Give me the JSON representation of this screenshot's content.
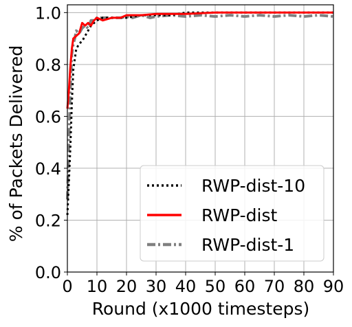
{
  "chart_data": {
    "type": "line",
    "title": "",
    "xlabel": "Round (x1000 timesteps)",
    "ylabel": "% of Packets Delivered",
    "xlim": [
      0,
      90
    ],
    "ylim": [
      0,
      1.03
    ],
    "xticks": [
      0,
      10,
      20,
      30,
      40,
      50,
      60,
      70,
      80,
      90
    ],
    "xtick_labels": [
      "0",
      "10",
      "20",
      "30",
      "40",
      "50",
      "60",
      "70",
      "80",
      "90"
    ],
    "yticks": [
      0.0,
      0.2,
      0.4,
      0.6,
      0.8,
      1.0
    ],
    "ytick_labels": [
      "0.0",
      "0.2",
      "0.4",
      "0.6",
      "0.8",
      "1.0"
    ],
    "grid": true,
    "legend_position": "lower-right",
    "series": [
      {
        "name": "RWP-dist-10",
        "color": "#000000",
        "style": "dotted",
        "points": [
          [
            0,
            0.22
          ],
          [
            0.5,
            0.35
          ],
          [
            1,
            0.48
          ],
          [
            1.5,
            0.65
          ],
          [
            2,
            0.78
          ],
          [
            3,
            0.86
          ],
          [
            4,
            0.88
          ],
          [
            5,
            0.89
          ],
          [
            6,
            0.91
          ],
          [
            7,
            0.93
          ],
          [
            8,
            0.95
          ],
          [
            10,
            0.97
          ],
          [
            12,
            0.98
          ],
          [
            15,
            0.98
          ],
          [
            20,
            0.98
          ],
          [
            25,
            0.99
          ],
          [
            30,
            0.99
          ],
          [
            35,
            0.99
          ],
          [
            40,
            1.0
          ],
          [
            50,
            1.0
          ],
          [
            60,
            1.0
          ],
          [
            70,
            1.0
          ],
          [
            80,
            1.0
          ],
          [
            90,
            1.0
          ]
        ]
      },
      {
        "name": "RWP-dist",
        "color": "#ff0000",
        "style": "solid",
        "points": [
          [
            0,
            0.63
          ],
          [
            0.5,
            0.7
          ],
          [
            1,
            0.79
          ],
          [
            1.5,
            0.86
          ],
          [
            2,
            0.9
          ],
          [
            3,
            0.91
          ],
          [
            4,
            0.92
          ],
          [
            5,
            0.96
          ],
          [
            6,
            0.95
          ],
          [
            7,
            0.96
          ],
          [
            8,
            0.95
          ],
          [
            9,
            0.97
          ],
          [
            10,
            0.98
          ],
          [
            12,
            0.97
          ],
          [
            15,
            0.98
          ],
          [
            18,
            0.98
          ],
          [
            20,
            0.99
          ],
          [
            25,
            0.99
          ],
          [
            30,
            0.995
          ],
          [
            40,
            0.995
          ],
          [
            50,
            1.0
          ],
          [
            60,
            1.0
          ],
          [
            70,
            1.0
          ],
          [
            80,
            1.0
          ],
          [
            90,
            1.0
          ]
        ]
      },
      {
        "name": "RWP-dist-1",
        "color": "#808080",
        "style": "dashdot",
        "points": [
          [
            0,
            0.28
          ],
          [
            0.5,
            0.5
          ],
          [
            1,
            0.7
          ],
          [
            1.5,
            0.84
          ],
          [
            2,
            0.88
          ],
          [
            2.5,
            0.9
          ],
          [
            3,
            0.93
          ],
          [
            4,
            0.92
          ],
          [
            5,
            0.94
          ],
          [
            6,
            0.95
          ],
          [
            7,
            0.94
          ],
          [
            8,
            0.97
          ],
          [
            9,
            0.97
          ],
          [
            10,
            0.98
          ],
          [
            12,
            0.98
          ],
          [
            15,
            0.98
          ],
          [
            18,
            0.98
          ],
          [
            20,
            0.985
          ],
          [
            22,
            0.98
          ],
          [
            25,
            0.99
          ],
          [
            28,
            0.98
          ],
          [
            30,
            0.985
          ],
          [
            35,
            0.99
          ],
          [
            40,
            0.985
          ],
          [
            45,
            0.99
          ],
          [
            50,
            0.985
          ],
          [
            55,
            0.99
          ],
          [
            60,
            0.985
          ],
          [
            65,
            0.99
          ],
          [
            70,
            0.985
          ],
          [
            75,
            0.99
          ],
          [
            80,
            0.985
          ],
          [
            85,
            0.99
          ],
          [
            90,
            0.985
          ]
        ]
      }
    ]
  }
}
